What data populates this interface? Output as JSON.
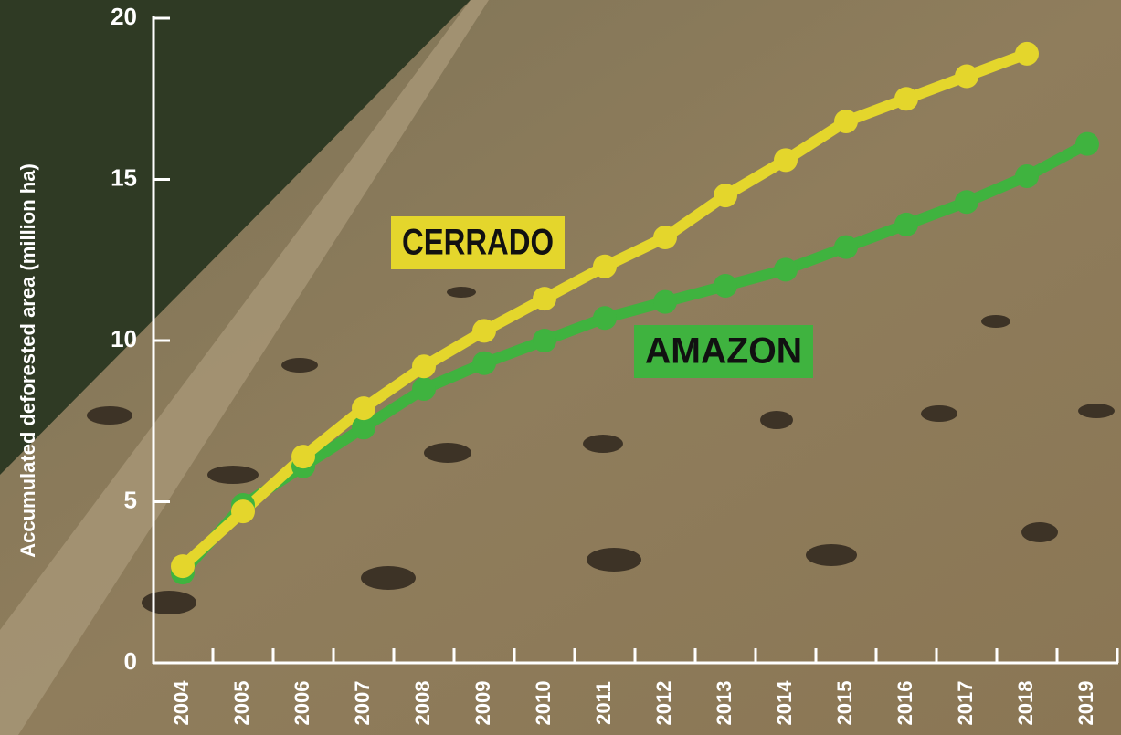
{
  "chart_data": {
    "type": "line",
    "y_label": "Accumulated deforested area (million ha)",
    "categories": [
      "2004",
      "2005",
      "2006",
      "2007",
      "2008",
      "2009",
      "2010",
      "2011",
      "2012",
      "2013",
      "2014",
      "2015",
      "2016",
      "2017",
      "2018",
      "2019"
    ],
    "series": [
      {
        "name": "AMAZON",
        "color": "#3fb33f",
        "values": [
          2.8,
          4.9,
          6.1,
          7.3,
          8.5,
          9.3,
          10.0,
          10.7,
          11.2,
          11.7,
          12.2,
          12.9,
          13.6,
          14.3,
          15.1,
          16.1
        ]
      },
      {
        "name": "CERRADO",
        "color": "#e4d62c",
        "values": [
          3.0,
          4.7,
          6.4,
          7.9,
          9.2,
          10.3,
          11.3,
          12.3,
          13.2,
          14.5,
          15.6,
          16.8,
          17.5,
          18.2,
          18.9,
          null
        ]
      }
    ],
    "ylim": [
      0,
      20
    ],
    "yticks": [
      0,
      5,
      10,
      15,
      20
    ]
  }
}
